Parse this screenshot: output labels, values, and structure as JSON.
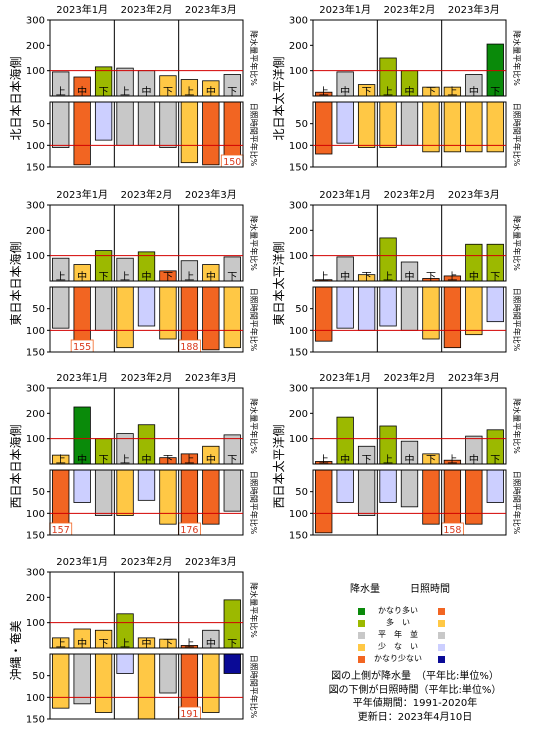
{
  "months": [
    "2023年1月",
    "2023年2月",
    "2023年3月"
  ],
  "dekads": [
    "上",
    "中",
    "下"
  ],
  "legend": {
    "precip_header": "降水量",
    "sun_header": "日照時間",
    "entries": [
      {
        "label": "かなり多い",
        "precip_color": "#0a8a0a",
        "sun_color": "#f26522"
      },
      {
        "label": "多　い",
        "precip_color": "#9cb900",
        "sun_color": "#ffc845"
      },
      {
        "label": "平　年　並",
        "precip_color": "#c8c8c8",
        "sun_color": "#c8c8c8"
      },
      {
        "label": "少　な　い",
        "precip_color": "#ffc845",
        "sun_color": "#cccfff"
      },
      {
        "label": "かなり少ない",
        "precip_color": "#f26522",
        "sun_color": "#0a0a96"
      }
    ]
  },
  "notes": [
    "図の上側が降水量　（平年比:単位%）",
    "図の下側が日照時間（平年比:単位%）",
    "平年値期間：1991-2020年",
    "更新日：2023年4月10日"
  ],
  "chart_data": [
    {
      "type": "bar",
      "region": "北日本日本海側",
      "categories": [
        "1月上",
        "1月中",
        "1月下",
        "2月上",
        "2月中",
        "2月下",
        "3月上",
        "3月中",
        "3月下"
      ],
      "precip": {
        "ylabel": "降水量平年比%",
        "ylim": [
          0,
          300
        ],
        "yticks": [
          100,
          200,
          300
        ],
        "values": [
          95,
          75,
          115,
          110,
          100,
          80,
          65,
          60,
          85
        ],
        "colors": [
          "#c8c8c8",
          "#f26522",
          "#9cb900",
          "#c8c8c8",
          "#c8c8c8",
          "#ffc845",
          "#ffc845",
          "#ffc845",
          "#c8c8c8"
        ]
      },
      "sun": {
        "ylabel": "日照時間平年比%",
        "ylim": [
          150,
          0
        ],
        "yticks": [
          50,
          100,
          150
        ],
        "values": [
          105,
          145,
          88,
          100,
          100,
          105,
          140,
          145,
          150
        ],
        "colors": [
          "#c8c8c8",
          "#f26522",
          "#cccfff",
          "#c8c8c8",
          "#c8c8c8",
          "#c8c8c8",
          "#ffc845",
          "#f26522",
          "#f26522"
        ],
        "labels": [
          "",
          "",
          "",
          "",
          "",
          "",
          "",
          "",
          "150"
        ]
      }
    },
    {
      "type": "bar",
      "region": "北日本太平洋側",
      "categories": [
        "1月上",
        "1月中",
        "1月下",
        "2月上",
        "2月中",
        "2月下",
        "3月上",
        "3月中",
        "3月下"
      ],
      "precip": {
        "ylabel": "降水量平年比%",
        "ylim": [
          0,
          300
        ],
        "yticks": [
          100,
          200,
          300
        ],
        "values": [
          15,
          95,
          45,
          150,
          100,
          35,
          35,
          85,
          205
        ],
        "colors": [
          "#f26522",
          "#c8c8c8",
          "#ffc845",
          "#9cb900",
          "#9cb900",
          "#ffc845",
          "#ffc845",
          "#c8c8c8",
          "#0a8a0a"
        ]
      },
      "sun": {
        "ylabel": "日照時間平年比%",
        "ylim": [
          150,
          0
        ],
        "yticks": [
          50,
          100,
          150
        ],
        "values": [
          120,
          95,
          105,
          105,
          100,
          115,
          115,
          115,
          115
        ],
        "colors": [
          "#f26522",
          "#cccfff",
          "#ffc845",
          "#ffc845",
          "#c8c8c8",
          "#ffc845",
          "#ffc845",
          "#ffc845",
          "#ffc845"
        ],
        "labels": [
          "",
          "",
          "",
          "",
          "",
          "",
          "",
          "",
          ""
        ]
      }
    },
    {
      "type": "bar",
      "region": "東日本日本海側",
      "categories": [
        "1月上",
        "1月中",
        "1月下",
        "2月上",
        "2月中",
        "2月下",
        "3月上",
        "3月中",
        "3月下"
      ],
      "precip": {
        "ylabel": "降水量平年比%",
        "ylim": [
          0,
          300
        ],
        "yticks": [
          100,
          200,
          300
        ],
        "values": [
          90,
          65,
          120,
          90,
          115,
          40,
          80,
          65,
          95
        ],
        "colors": [
          "#c8c8c8",
          "#ffc845",
          "#9cb900",
          "#c8c8c8",
          "#9cb900",
          "#f26522",
          "#c8c8c8",
          "#ffc845",
          "#c8c8c8"
        ]
      },
      "sun": {
        "ylabel": "日照時間平年比%",
        "ylim": [
          150,
          0
        ],
        "yticks": [
          50,
          100,
          150
        ],
        "values": [
          95,
          155,
          100,
          140,
          90,
          120,
          188,
          145,
          140
        ],
        "colors": [
          "#c8c8c8",
          "#f26522",
          "#c8c8c8",
          "#ffc845",
          "#cccfff",
          "#ffc845",
          "#f26522",
          "#f26522",
          "#ffc845"
        ],
        "labels": [
          "",
          "155",
          "",
          "",
          "",
          "",
          "188",
          "",
          ""
        ]
      }
    },
    {
      "type": "bar",
      "region": "東日本太平洋側",
      "categories": [
        "1月上",
        "1月中",
        "1月下",
        "2月上",
        "2月中",
        "2月下",
        "3月上",
        "3月中",
        "3月下"
      ],
      "precip": {
        "ylabel": "降水量平年比%",
        "ylim": [
          0,
          300
        ],
        "yticks": [
          100,
          200,
          300
        ],
        "values": [
          5,
          95,
          25,
          170,
          75,
          10,
          20,
          145,
          145
        ],
        "colors": [
          "#f26522",
          "#c8c8c8",
          "#ffc845",
          "#9cb900",
          "#c8c8c8",
          "#f26522",
          "#f26522",
          "#9cb900",
          "#9cb900"
        ]
      },
      "sun": {
        "ylabel": "日照時間平年比%",
        "ylim": [
          150,
          0
        ],
        "yticks": [
          50,
          100,
          150
        ],
        "values": [
          125,
          95,
          100,
          90,
          100,
          120,
          140,
          110,
          80
        ],
        "colors": [
          "#f26522",
          "#cccfff",
          "#cccfff",
          "#cccfff",
          "#c8c8c8",
          "#ffc845",
          "#f26522",
          "#ffc845",
          "#cccfff"
        ],
        "labels": [
          "",
          "",
          "",
          "",
          "",
          "",
          "",
          "",
          ""
        ]
      }
    },
    {
      "type": "bar",
      "region": "西日本日本海側",
      "categories": [
        "1月上",
        "1月中",
        "1月下",
        "2月上",
        "2月中",
        "2月下",
        "3月上",
        "3月中",
        "3月下"
      ],
      "precip": {
        "ylabel": "降水量平年比%",
        "ylim": [
          0,
          300
        ],
        "yticks": [
          100,
          200,
          300
        ],
        "values": [
          35,
          225,
          100,
          120,
          155,
          25,
          40,
          70,
          115
        ],
        "colors": [
          "#ffc845",
          "#0a8a0a",
          "#9cb900",
          "#c8c8c8",
          "#9cb900",
          "#f26522",
          "#f26522",
          "#ffc845",
          "#c8c8c8"
        ]
      },
      "sun": {
        "ylabel": "日照時間平年比%",
        "ylim": [
          150,
          0
        ],
        "yticks": [
          50,
          100,
          150
        ],
        "values": [
          157,
          75,
          105,
          105,
          70,
          125,
          176,
          125,
          95
        ],
        "colors": [
          "#f26522",
          "#cccfff",
          "#c8c8c8",
          "#ffc845",
          "#cccfff",
          "#ffc845",
          "#f26522",
          "#f26522",
          "#c8c8c8"
        ],
        "labels": [
          "157",
          "",
          "",
          "",
          "",
          "",
          "176",
          "",
          ""
        ]
      }
    },
    {
      "type": "bar",
      "region": "西日本太平洋側",
      "categories": [
        "1月上",
        "1月中",
        "1月下",
        "2月上",
        "2月中",
        "2月下",
        "3月上",
        "3月中",
        "3月下"
      ],
      "precip": {
        "ylabel": "降水量平年比%",
        "ylim": [
          0,
          300
        ],
        "yticks": [
          100,
          200,
          300
        ],
        "values": [
          10,
          185,
          70,
          150,
          90,
          40,
          15,
          110,
          135
        ],
        "colors": [
          "#f26522",
          "#9cb900",
          "#c8c8c8",
          "#9cb900",
          "#c8c8c8",
          "#ffc845",
          "#f26522",
          "#c8c8c8",
          "#9cb900"
        ]
      },
      "sun": {
        "ylabel": "日照時間平年比%",
        "ylim": [
          150,
          0
        ],
        "yticks": [
          50,
          100,
          150
        ],
        "values": [
          145,
          75,
          105,
          75,
          85,
          125,
          158,
          125,
          75
        ],
        "colors": [
          "#f26522",
          "#cccfff",
          "#c8c8c8",
          "#cccfff",
          "#c8c8c8",
          "#f26522",
          "#f26522",
          "#f26522",
          "#cccfff"
        ],
        "labels": [
          "",
          "",
          "",
          "",
          "",
          "",
          "158",
          "",
          ""
        ]
      }
    },
    {
      "type": "bar",
      "region": "沖縄・奄美",
      "categories": [
        "1月上",
        "1月中",
        "1月下",
        "2月上",
        "2月中",
        "2月下",
        "3月上",
        "3月中",
        "3月下"
      ],
      "precip": {
        "ylabel": "降水量平年比%",
        "ylim": [
          0,
          300
        ],
        "yticks": [
          100,
          200,
          300
        ],
        "values": [
          40,
          75,
          70,
          135,
          40,
          35,
          10,
          70,
          190
        ],
        "colors": [
          "#ffc845",
          "#ffc845",
          "#ffc845",
          "#9cb900",
          "#ffc845",
          "#ffc845",
          "#f26522",
          "#c8c8c8",
          "#9cb900"
        ]
      },
      "sun": {
        "ylabel": "日照時間平年比%",
        "ylim": [
          150,
          0
        ],
        "yticks": [
          50,
          100,
          150
        ],
        "values": [
          125,
          115,
          135,
          45,
          150,
          90,
          191,
          135,
          45
        ],
        "colors": [
          "#ffc845",
          "#c8c8c8",
          "#ffc845",
          "#cccfff",
          "#ffc845",
          "#c8c8c8",
          "#f26522",
          "#ffc845",
          "#0a0a96"
        ],
        "labels": [
          "",
          "",
          "",
          "",
          "",
          "",
          "191",
          "",
          ""
        ]
      }
    }
  ]
}
